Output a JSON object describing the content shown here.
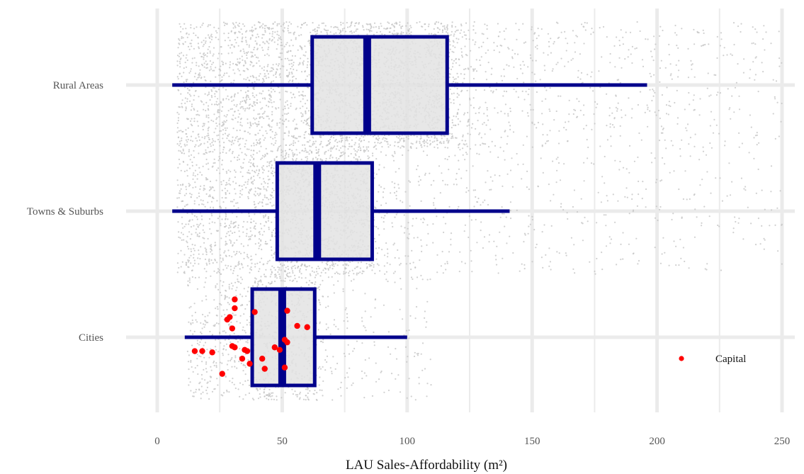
{
  "chart_data": {
    "type": "boxplot",
    "title": "",
    "xlabel": "LAU Sales-Affordability (m²)",
    "ylabel": "",
    "xlim": [
      0,
      250
    ],
    "x_ticks": [
      "0",
      "50",
      "100",
      "150",
      "200",
      "250"
    ],
    "x_tick_values": [
      0,
      50,
      100,
      150,
      200,
      250
    ],
    "categories": [
      "Rural Areas",
      "Towns & Suburbs",
      "Cities"
    ],
    "grid": true,
    "colors": {
      "box": "#00008B",
      "box_fill": "#e3e3e3",
      "jitter": "#c4c4c4",
      "capital": "#ff0000",
      "grid": "#ebebeb"
    },
    "boxes": [
      {
        "category": "Rural Areas",
        "whisker_low": 6,
        "q1": 62,
        "median": 84,
        "q3": 116,
        "whisker_high": 196,
        "jitter_range": [
          8,
          250
        ]
      },
      {
        "category": "Towns & Suburbs",
        "whisker_low": 6,
        "q1": 48,
        "median": 64,
        "q3": 86,
        "whisker_high": 141,
        "jitter_range": [
          8,
          250
        ]
      },
      {
        "category": "Cities",
        "whisker_low": 11,
        "q1": 38,
        "median": 50,
        "q3": 63,
        "whisker_high": 100,
        "jitter_range": [
          12,
          110
        ]
      }
    ],
    "capitals": {
      "name": "Capital",
      "category": "Cities",
      "points": [
        {
          "x": 31,
          "y": 0.3
        },
        {
          "x": 31,
          "y": 0.23
        },
        {
          "x": 29,
          "y": 0.16
        },
        {
          "x": 28,
          "y": 0.14
        },
        {
          "x": 39,
          "y": 0.2
        },
        {
          "x": 52,
          "y": 0.21
        },
        {
          "x": 56,
          "y": 0.09
        },
        {
          "x": 60,
          "y": 0.08
        },
        {
          "x": 30,
          "y": 0.07
        },
        {
          "x": 51,
          "y": -0.02
        },
        {
          "x": 52,
          "y": -0.04
        },
        {
          "x": 15,
          "y": -0.11
        },
        {
          "x": 18,
          "y": -0.11
        },
        {
          "x": 22,
          "y": -0.12
        },
        {
          "x": 30,
          "y": -0.07
        },
        {
          "x": 31,
          "y": -0.08
        },
        {
          "x": 35,
          "y": -0.1
        },
        {
          "x": 36,
          "y": -0.11
        },
        {
          "x": 47,
          "y": -0.08
        },
        {
          "x": 49,
          "y": -0.1
        },
        {
          "x": 34,
          "y": -0.17
        },
        {
          "x": 37,
          "y": -0.21
        },
        {
          "x": 42,
          "y": -0.17
        },
        {
          "x": 43,
          "y": -0.25
        },
        {
          "x": 51,
          "y": -0.24
        },
        {
          "x": 26,
          "y": -0.29
        }
      ]
    },
    "legend": {
      "position": "bottom-right",
      "entries": [
        "Capital"
      ]
    }
  }
}
